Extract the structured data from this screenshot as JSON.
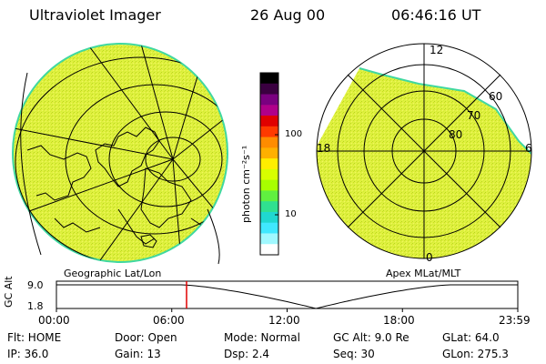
{
  "header": {
    "title": "Ultraviolet Imager",
    "date": "26 Aug 00",
    "time": "06:46:16 UT"
  },
  "colorbar": {
    "label": "photon cm⁻²s⁻¹",
    "ticks": [
      {
        "value": 100,
        "label": "100"
      },
      {
        "value": 10,
        "label": "10"
      }
    ],
    "colors": [
      "#000000",
      "#3a0040",
      "#7a0080",
      "#b0008a",
      "#e00000",
      "#ff3a00",
      "#ff8c00",
      "#ffb000",
      "#ffee00",
      "#d8ff00",
      "#a8ff00",
      "#60f040",
      "#30e090",
      "#20d8d0",
      "#40e8ff",
      "#a0f8ff",
      "#ffffff"
    ]
  },
  "left_panel": {
    "label": "Geographic Lat/Lon",
    "fill_color": "#e0f040"
  },
  "right_panel": {
    "label": "Apex MLat/MLT",
    "fill_color": "#e0f040",
    "mlt_labels": {
      "top": "12",
      "left": "18",
      "right": "6",
      "bottom": "0"
    },
    "lat_labels": [
      "60",
      "70",
      "80"
    ]
  },
  "timeline": {
    "ylabel": "GC Alt",
    "ymax_label": "9.0",
    "ymin_label": "1.8",
    "x_ticks": [
      "00:00",
      "06:00",
      "12:00",
      "18:00",
      "23:59"
    ],
    "current_time_hours": 6.77
  },
  "info": {
    "row1": {
      "flt": "Flt: HOME",
      "door": "Door: Open",
      "mode": "Mode: Normal",
      "gcalt": "GC Alt: 9.0 Re",
      "glat": "GLat:  64.0"
    },
    "row2": {
      "ip": "IP: 36.0",
      "gain": "Gain: 13",
      "dsp": "Dsp:    2.4",
      "seq": "Seq: 30",
      "glon": "GLon: 275.3"
    }
  }
}
